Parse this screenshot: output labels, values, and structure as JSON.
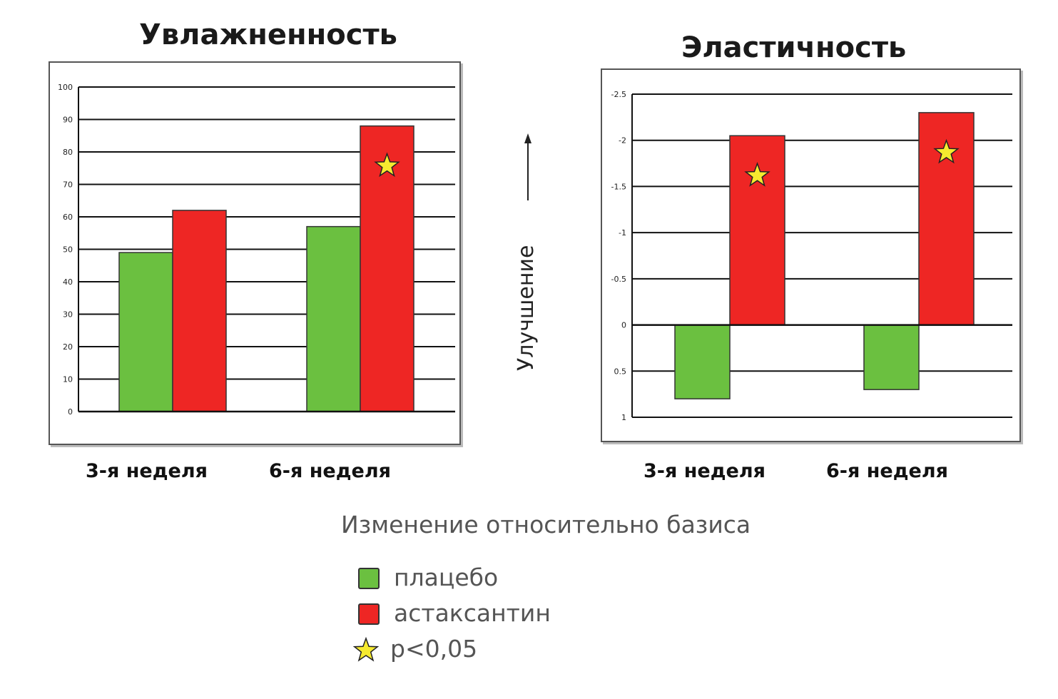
{
  "colors": {
    "placebo": "#6bc040",
    "astaxanthin": "#ee2624",
    "star": "#f6ea2f",
    "grid": "#111111"
  },
  "annotation": {
    "improvement": "Улучшение"
  },
  "subtitle": "Изменение относительно базиса",
  "legend": [
    {
      "label": "плацебо",
      "swatch": "placebo",
      "icon": "green-square"
    },
    {
      "label": "астаксантин",
      "swatch": "astaxanthin",
      "icon": "red-square"
    },
    {
      "label": "p<0,05",
      "swatch": "star",
      "icon": "star-icon"
    }
  ],
  "chart_data": [
    {
      "type": "bar",
      "title": "Увлажненность",
      "categories": [
        "3-я неделя",
        "6-я неделя"
      ],
      "series": [
        {
          "name": "плацебо",
          "values": [
            49,
            57
          ]
        },
        {
          "name": "астаксантин",
          "values": [
            62,
            88
          ]
        }
      ],
      "significant": [
        [
          false,
          false
        ],
        [
          false,
          true
        ]
      ],
      "ylim": [
        0,
        100
      ],
      "yticks": [
        "0",
        "10",
        "20",
        "30",
        "40",
        "50",
        "60",
        "70",
        "80",
        "90",
        "100"
      ],
      "reversed": false,
      "grid": true
    },
    {
      "type": "bar",
      "title": "Эластичность",
      "categories": [
        "3-я неделя",
        "6-я неделя"
      ],
      "series": [
        {
          "name": "плацебо",
          "values": [
            0.8,
            0.7
          ]
        },
        {
          "name": "астаксантин",
          "values": [
            -2.05,
            -2.3
          ]
        }
      ],
      "significant": [
        [
          false,
          false
        ],
        [
          true,
          true
        ]
      ],
      "ylim": [
        -2.5,
        1
      ],
      "yticks": [
        "-2.5",
        "-2",
        "-1.5",
        "-1",
        "-0.5",
        "0",
        "0.5",
        "1"
      ],
      "reversed": true,
      "grid": true
    }
  ]
}
